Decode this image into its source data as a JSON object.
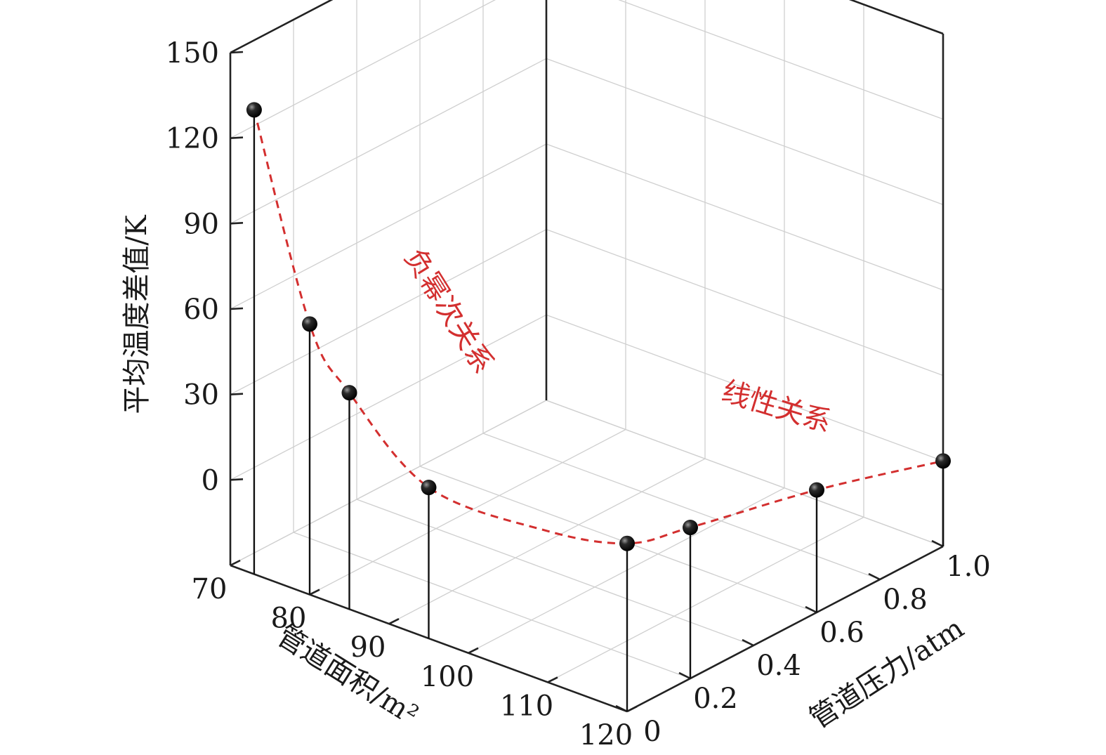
{
  "chart_data": {
    "type": "scatter",
    "subtype": "3d-stem",
    "title": "",
    "axes": {
      "x": {
        "label": "管道面积/m²",
        "range": [
          70,
          120
        ],
        "ticks": [
          "70",
          "80",
          "90",
          "100",
          "110",
          "120"
        ]
      },
      "y": {
        "label": "管道压力/atm",
        "range": [
          0,
          1.0
        ],
        "ticks": [
          "0",
          "0.2",
          "0.4",
          "0.6",
          "0.8",
          "1.0"
        ]
      },
      "z": {
        "label": "平均温度差值/K",
        "range": [
          -30,
          150
        ],
        "ticks": [
          "0",
          "30",
          "60",
          "90",
          "120",
          "150"
        ]
      }
    },
    "grid": true,
    "series": [
      {
        "points": [
          {
            "area": 73,
            "pressure": 0,
            "dT": 133
          },
          {
            "area": 80,
            "pressure": 0,
            "dT": 65
          },
          {
            "area": 85,
            "pressure": 0,
            "dT": 46
          },
          {
            "area": 95,
            "pressure": 0,
            "dT": 23
          },
          {
            "area": 120,
            "pressure": 0,
            "dT": 29
          },
          {
            "area": 120,
            "pressure": 0.2,
            "dT": 23
          },
          {
            "area": 120,
            "pressure": 0.6,
            "dT": 13
          },
          {
            "area": 120,
            "pressure": 1.0,
            "dT": 0
          }
        ]
      }
    ],
    "annotations": [
      {
        "text": "负幂次关系",
        "color": "#d32f2f"
      },
      {
        "text": "线性关系",
        "color": "#d32f2f"
      }
    ],
    "colors": {
      "marker": "#111111",
      "curve": "#d32f2f"
    }
  }
}
